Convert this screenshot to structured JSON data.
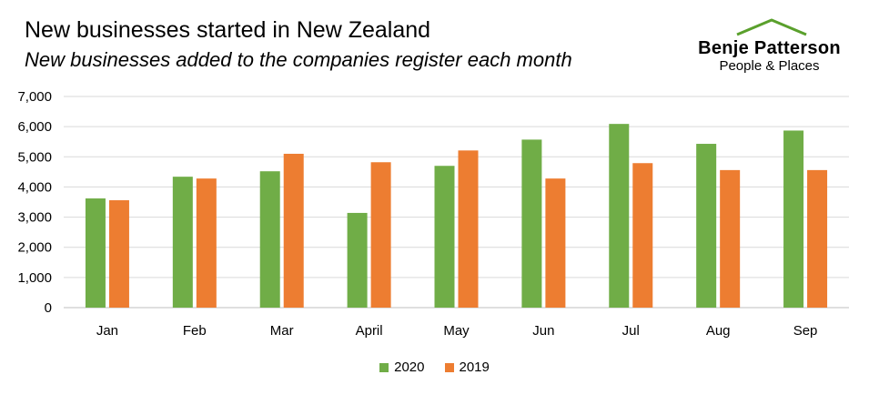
{
  "title": "New businesses started in New Zealand",
  "subtitle": "New businesses added to the companies register each month",
  "logo": {
    "name": "Benje Patterson",
    "tagline": "People & Places",
    "roof_color": "#5aa02c"
  },
  "chart_data": {
    "type": "bar",
    "title": "New businesses started in New Zealand",
    "subtitle": "New businesses added to the companies register each month",
    "categories": [
      "Jan",
      "Feb",
      "Mar",
      "April",
      "May",
      "Jun",
      "Jul",
      "Aug",
      "Sep"
    ],
    "series": [
      {
        "name": "2020",
        "color": "#70ad47",
        "values": [
          3620,
          4340,
          4520,
          3140,
          4700,
          5570,
          6090,
          5430,
          5870
        ]
      },
      {
        "name": "2019",
        "color": "#ed7d31",
        "values": [
          3560,
          4280,
          5100,
          4820,
          5210,
          4280,
          4790,
          4560,
          4560
        ]
      }
    ],
    "ylim": [
      0,
      7000
    ],
    "yticks": [
      "0",
      "1,000",
      "2,000",
      "3,000",
      "4,000",
      "5,000",
      "6,000",
      "7,000"
    ],
    "grid": true,
    "legend_position": "bottom"
  }
}
